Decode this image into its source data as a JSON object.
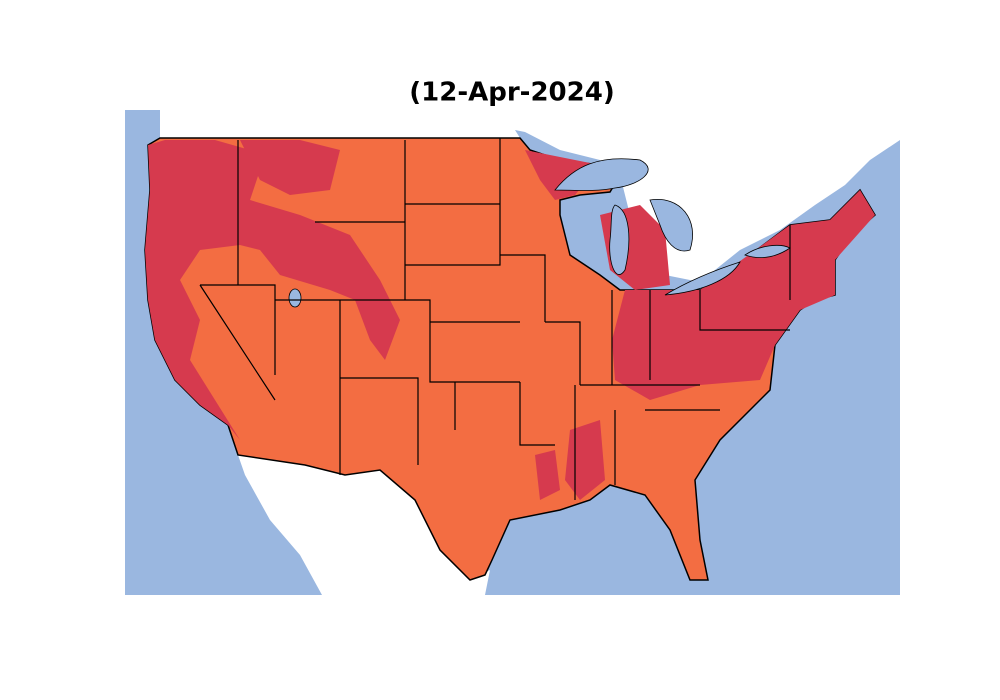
{
  "title": "(12-Apr-2024)"
}
